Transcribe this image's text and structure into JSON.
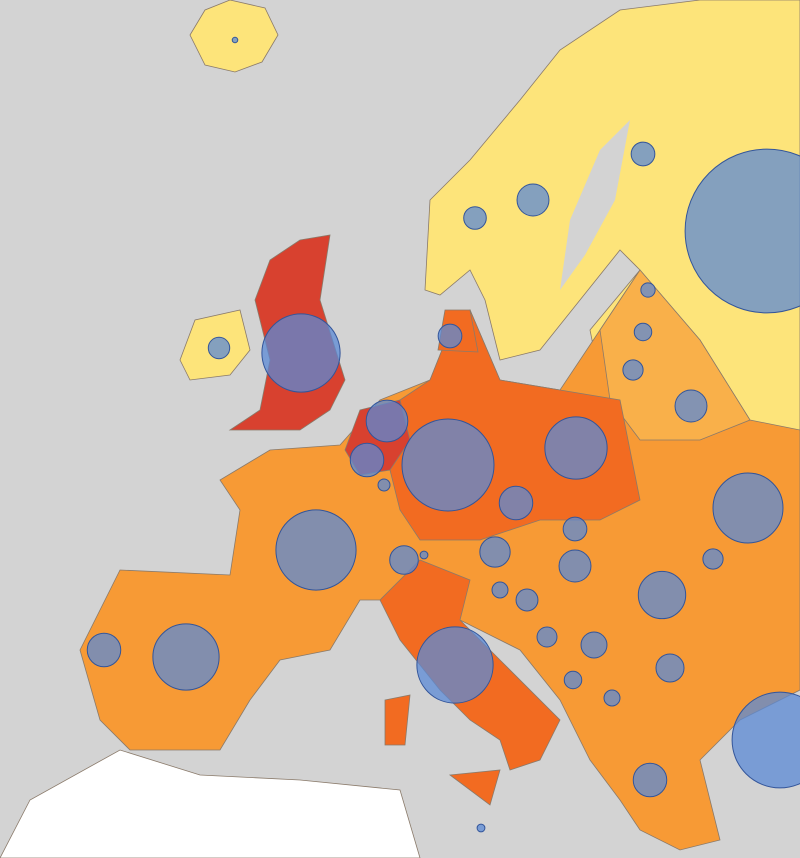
{
  "bubble_color": "#5b8ad6",
  "bubbles": [
    0.3,
    5,
    10,
    5.5,
    263,
    4.5,
    60,
    5.5,
    2,
    3,
    4,
    10,
    17,
    11,
    1.4,
    83,
    38,
    11,
    63,
    8,
    0.6,
    9,
    5.5,
    10,
    48,
    4,
    22,
    2.5,
    4.7,
    3.9,
    6.6,
    7.7,
    3,
    2.5,
    11,
    43,
    57,
    11,
    90,
    0.6
  ]
}
